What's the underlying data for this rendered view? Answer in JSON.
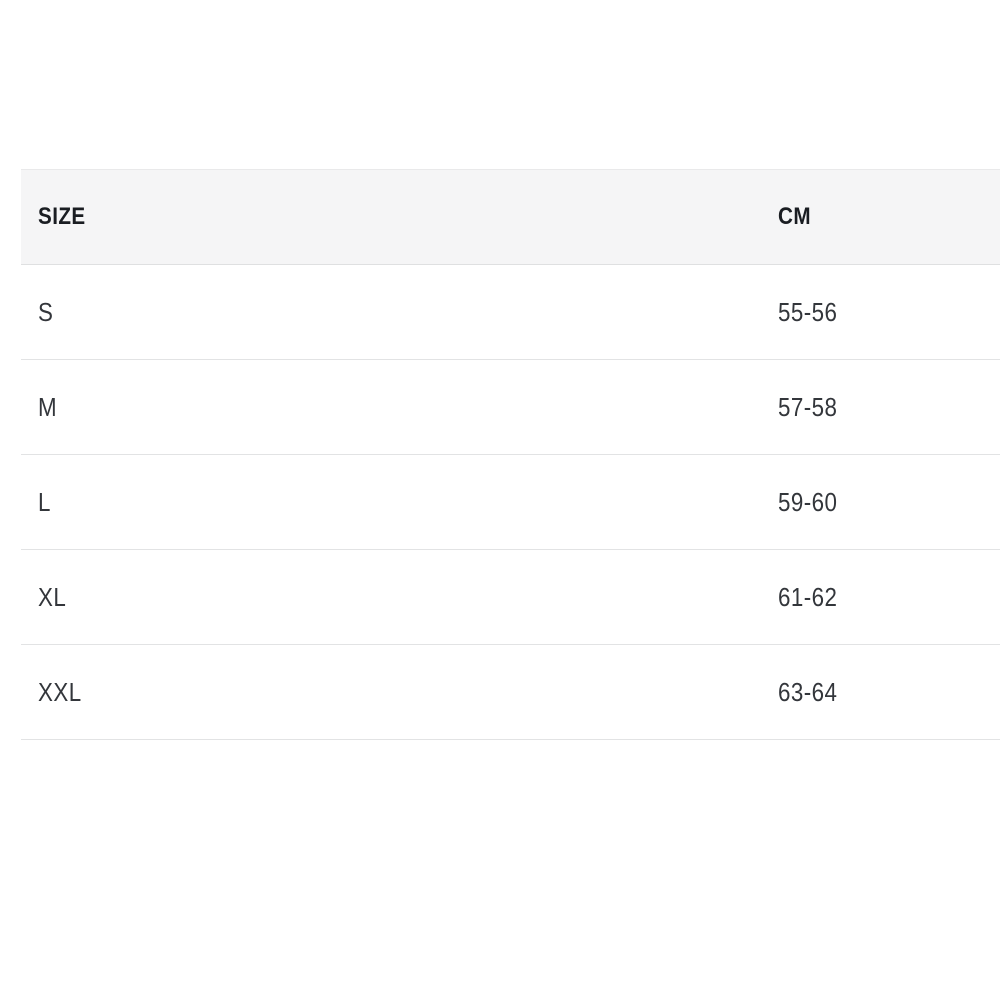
{
  "table": {
    "columns": [
      {
        "label": "SIZE"
      },
      {
        "label": "CM"
      }
    ],
    "rows": [
      {
        "size": "S",
        "cm": "55-56"
      },
      {
        "size": "M",
        "cm": "57-58"
      },
      {
        "size": "L",
        "cm": "59-60"
      },
      {
        "size": "XL",
        "cm": "61-62"
      },
      {
        "size": "XXL",
        "cm": "63-64"
      }
    ]
  }
}
